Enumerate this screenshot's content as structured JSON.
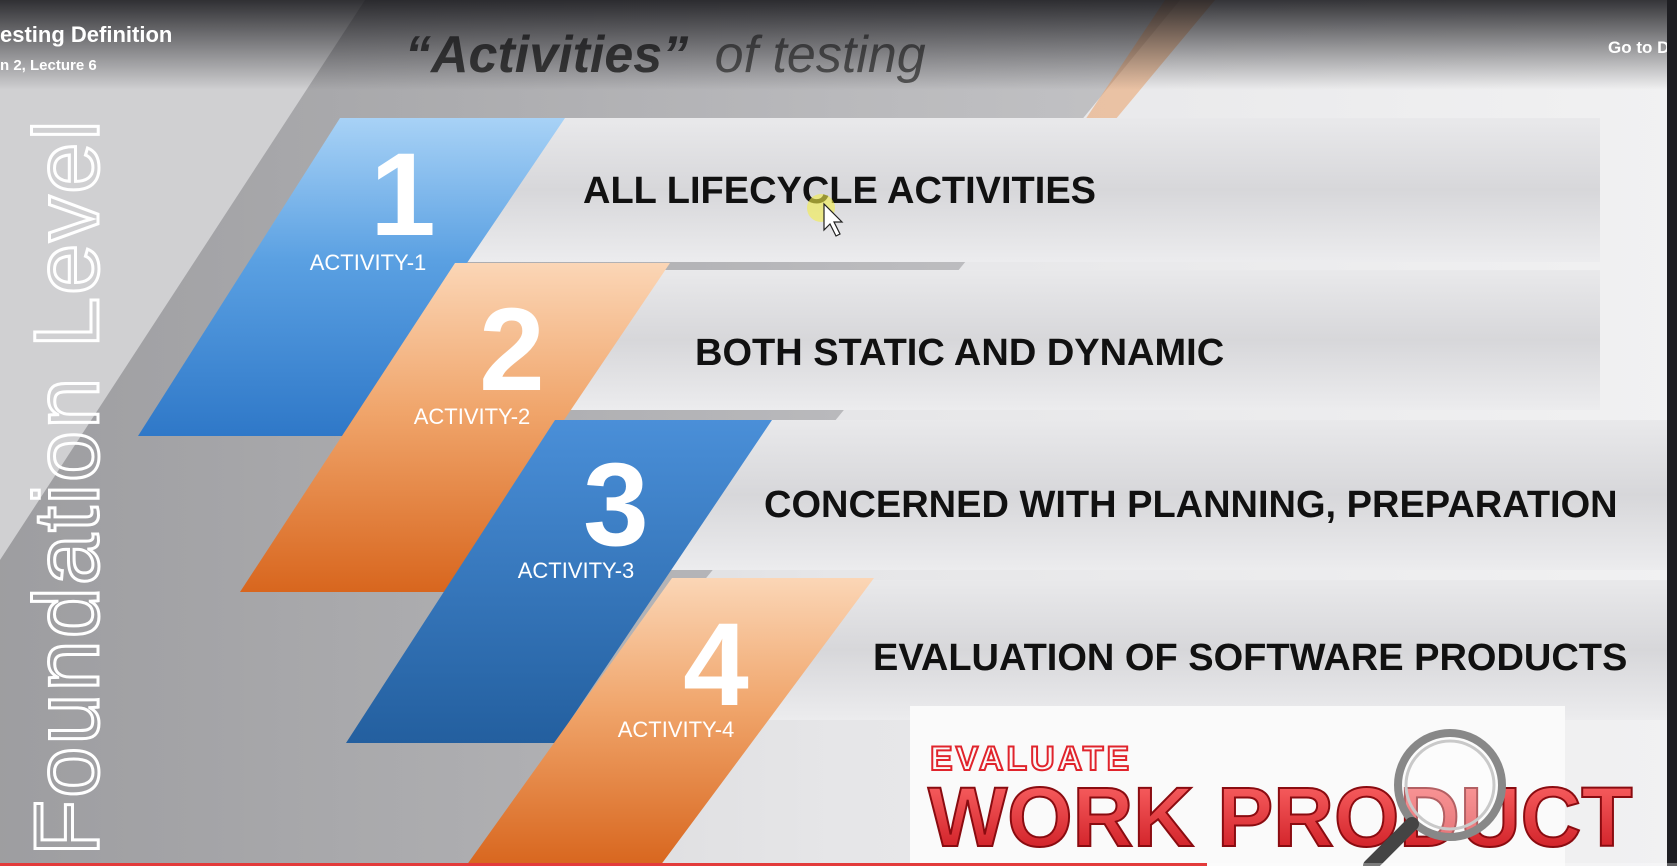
{
  "player": {
    "title": "esting Definition",
    "subtitle": "n 2, Lecture 6",
    "go_to_label": "Go to Da",
    "progress": 0.72
  },
  "slide": {
    "heading_quoted": "“Activities”",
    "heading_rest": "of testing",
    "side_label": "Foundation Level",
    "activities": [
      {
        "number": "1",
        "caption": "ACTIVITY-1",
        "text": "ALL LIFECYCLE ACTIVITIES",
        "color": "blue"
      },
      {
        "number": "2",
        "caption": "ACTIVITY-2",
        "text": "BOTH STATIC AND DYNAMIC",
        "color": "orange"
      },
      {
        "number": "3",
        "caption": "ACTIVITY-3",
        "text": "CONCERNED WITH PLANNING, PREPARATION",
        "color": "blue-dark"
      },
      {
        "number": "4",
        "caption": "ACTIVITY-4",
        "text": "EVALUATION OF SOFTWARE PRODUCTS",
        "color": "orange"
      }
    ],
    "image": {
      "line1": "EVALUATE",
      "line2": "WORK PRODUCT"
    }
  },
  "colors": {
    "blue_light": "#8fc3f0",
    "blue": "#3b87d6",
    "blue_dark": "#2b6fb8",
    "orange_light": "#f7c39a",
    "orange": "#e27a35",
    "slide_bg": "#e2e2e4",
    "text_dark": "#111111",
    "image_red": "#e0242c",
    "progress": "#e33b3b"
  },
  "icons": [
    "mouse-cursor-icon",
    "magnifier-icon"
  ]
}
